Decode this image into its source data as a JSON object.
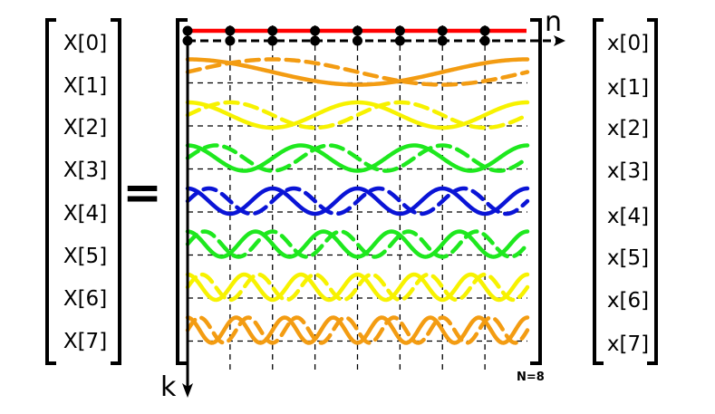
{
  "lhs_labels": [
    "X[0]",
    "X[1]",
    "X[2]",
    "X[3]",
    "X[4]",
    "X[5]",
    "X[6]",
    "X[7]"
  ],
  "rhs_labels": [
    "x[0]",
    "x[1]",
    "x[2]",
    "x[3]",
    "x[4]",
    "x[5]",
    "x[6]",
    "x[7]"
  ],
  "equals_sign": "=",
  "axis_n_label": "n",
  "axis_k_label": "k",
  "size_note": "N=8",
  "N": 8,
  "row_colors": [
    "#ff0000",
    "#f39c12",
    "#f7f200",
    "#1ee81e",
    "#0a14d6",
    "#1ee81e",
    "#f7f200",
    "#f39c12"
  ],
  "line_color": "#000000"
}
